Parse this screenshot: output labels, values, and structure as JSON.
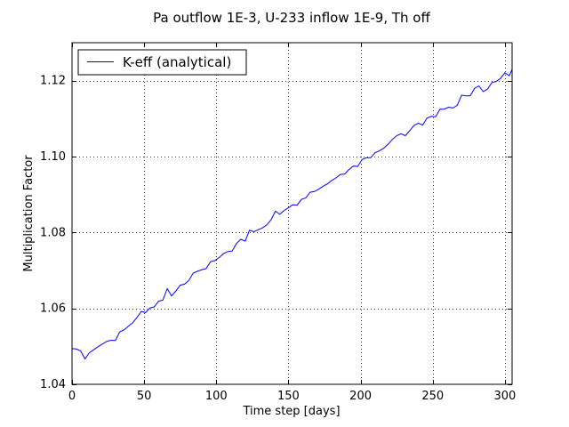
{
  "chart_data": {
    "type": "line",
    "title": "Pa outflow 1E-3, U-233 inflow 1E-9, Th off",
    "xlabel": "Time step [days]",
    "ylabel": "Multiplication Factor",
    "xlim": [
      0,
      305
    ],
    "ylim": [
      1.04,
      1.13
    ],
    "grid": true,
    "legend_position": "top-left",
    "x_ticks": [
      0,
      50,
      100,
      150,
      200,
      250,
      300
    ],
    "x_tick_labels": [
      "0",
      "50",
      "100",
      "150",
      "200",
      "250",
      "300"
    ],
    "y_ticks": [
      1.04,
      1.06,
      1.08,
      1.1,
      1.12
    ],
    "y_tick_labels": [
      "1.04",
      "1.06",
      "1.08",
      "1.10",
      "1.12"
    ],
    "series": [
      {
        "name": "K-eff (analytical)",
        "color": "#0000ff",
        "x": [
          0,
          3,
          6,
          9,
          12,
          15,
          18,
          21,
          24,
          27,
          30,
          33,
          36,
          39,
          42,
          45,
          48,
          51,
          54,
          57,
          60,
          63,
          66,
          69,
          72,
          75,
          78,
          81,
          84,
          87,
          90,
          93,
          96,
          99,
          102,
          105,
          108,
          111,
          114,
          117,
          120,
          123,
          126,
          129,
          132,
          135,
          138,
          141,
          144,
          147,
          150,
          153,
          156,
          159,
          162,
          165,
          168,
          171,
          174,
          177,
          180,
          183,
          186,
          189,
          192,
          195,
          198,
          201,
          204,
          207,
          210,
          213,
          216,
          219,
          222,
          225,
          228,
          231,
          234,
          237,
          240,
          243,
          246,
          249,
          252,
          255,
          258,
          261,
          264,
          267,
          270,
          273,
          276,
          279,
          282,
          285,
          288,
          291,
          294,
          297,
          300,
          303,
          305
        ],
        "values": [
          1.0494,
          1.0493,
          1.0488,
          1.0467,
          1.0483,
          1.0491,
          1.0499,
          1.0506,
          1.0513,
          1.0516,
          1.0515,
          1.0538,
          1.0543,
          1.0553,
          1.0562,
          1.0576,
          1.0592,
          1.0589,
          1.0601,
          1.0604,
          1.0619,
          1.0622,
          1.0652,
          1.0633,
          1.0646,
          1.0661,
          1.0664,
          1.0674,
          1.0693,
          1.0698,
          1.0702,
          1.0705,
          1.0723,
          1.0726,
          1.0734,
          1.0744,
          1.075,
          1.0751,
          1.0771,
          1.0782,
          1.0777,
          1.0806,
          1.0802,
          1.0807,
          1.0812,
          1.082,
          1.0834,
          1.0856,
          1.0848,
          1.0858,
          1.0865,
          1.0873,
          1.0872,
          1.0887,
          1.0891,
          1.0906,
          1.0908,
          1.0914,
          1.0922,
          1.0928,
          1.0937,
          1.0944,
          1.0953,
          1.0954,
          1.0966,
          1.0975,
          1.0974,
          1.0992,
          1.0997,
          1.0997,
          1.101,
          1.1015,
          1.1022,
          1.1032,
          1.1045,
          1.1055,
          1.106,
          1.1055,
          1.1068,
          1.1082,
          1.1088,
          1.1083,
          1.1101,
          1.1106,
          1.1105,
          1.1125,
          1.1125,
          1.113,
          1.1128,
          1.1135,
          1.1162,
          1.116,
          1.116,
          1.118,
          1.1186,
          1.1171,
          1.1178,
          1.1195,
          1.1198,
          1.1206,
          1.1221,
          1.1213,
          1.123
        ]
      }
    ]
  }
}
